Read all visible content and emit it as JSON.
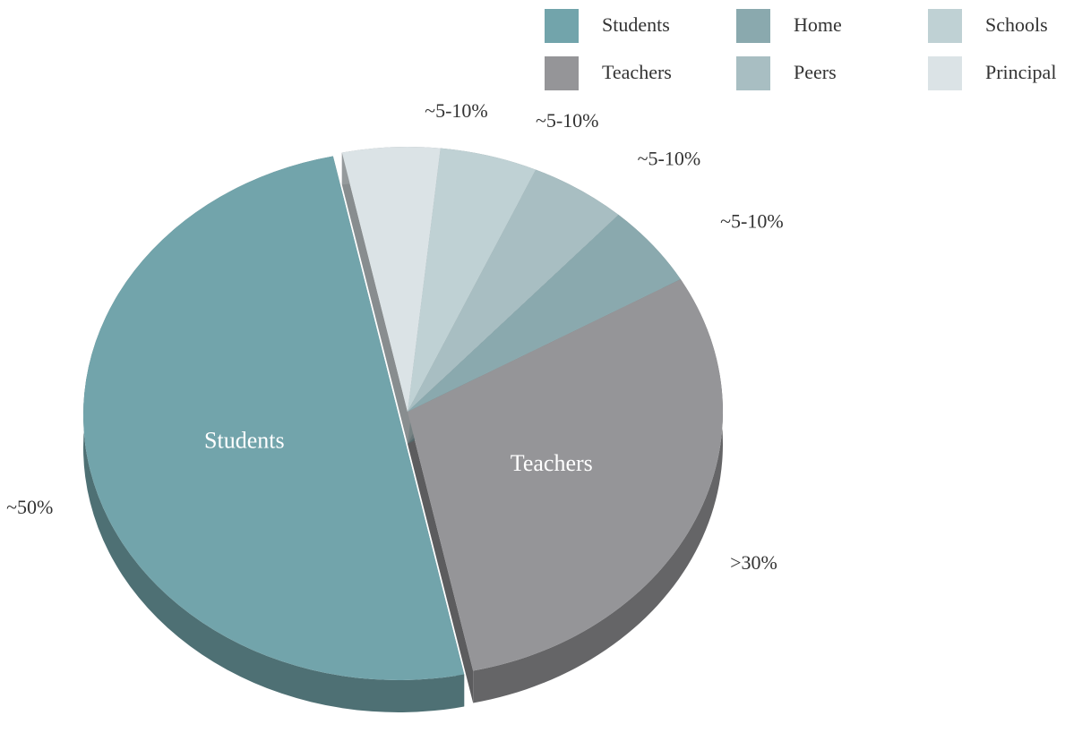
{
  "chart_data": {
    "type": "pie",
    "categories": [
      "Students",
      "Teachers",
      "Home",
      "Peers",
      "Schools",
      "Principal"
    ],
    "values": [
      50,
      30,
      5,
      5,
      5,
      5
    ],
    "value_labels": [
      "~50%",
      ">30%",
      "~5-10%",
      "~5-10%",
      "~5-10%",
      "~5-10%"
    ],
    "colors": [
      "#72a4ab",
      "#959598",
      "#8aa9ae",
      "#a8bec2",
      "#bfd1d4",
      "#dbe3e6"
    ],
    "legend": "top-right"
  }
}
